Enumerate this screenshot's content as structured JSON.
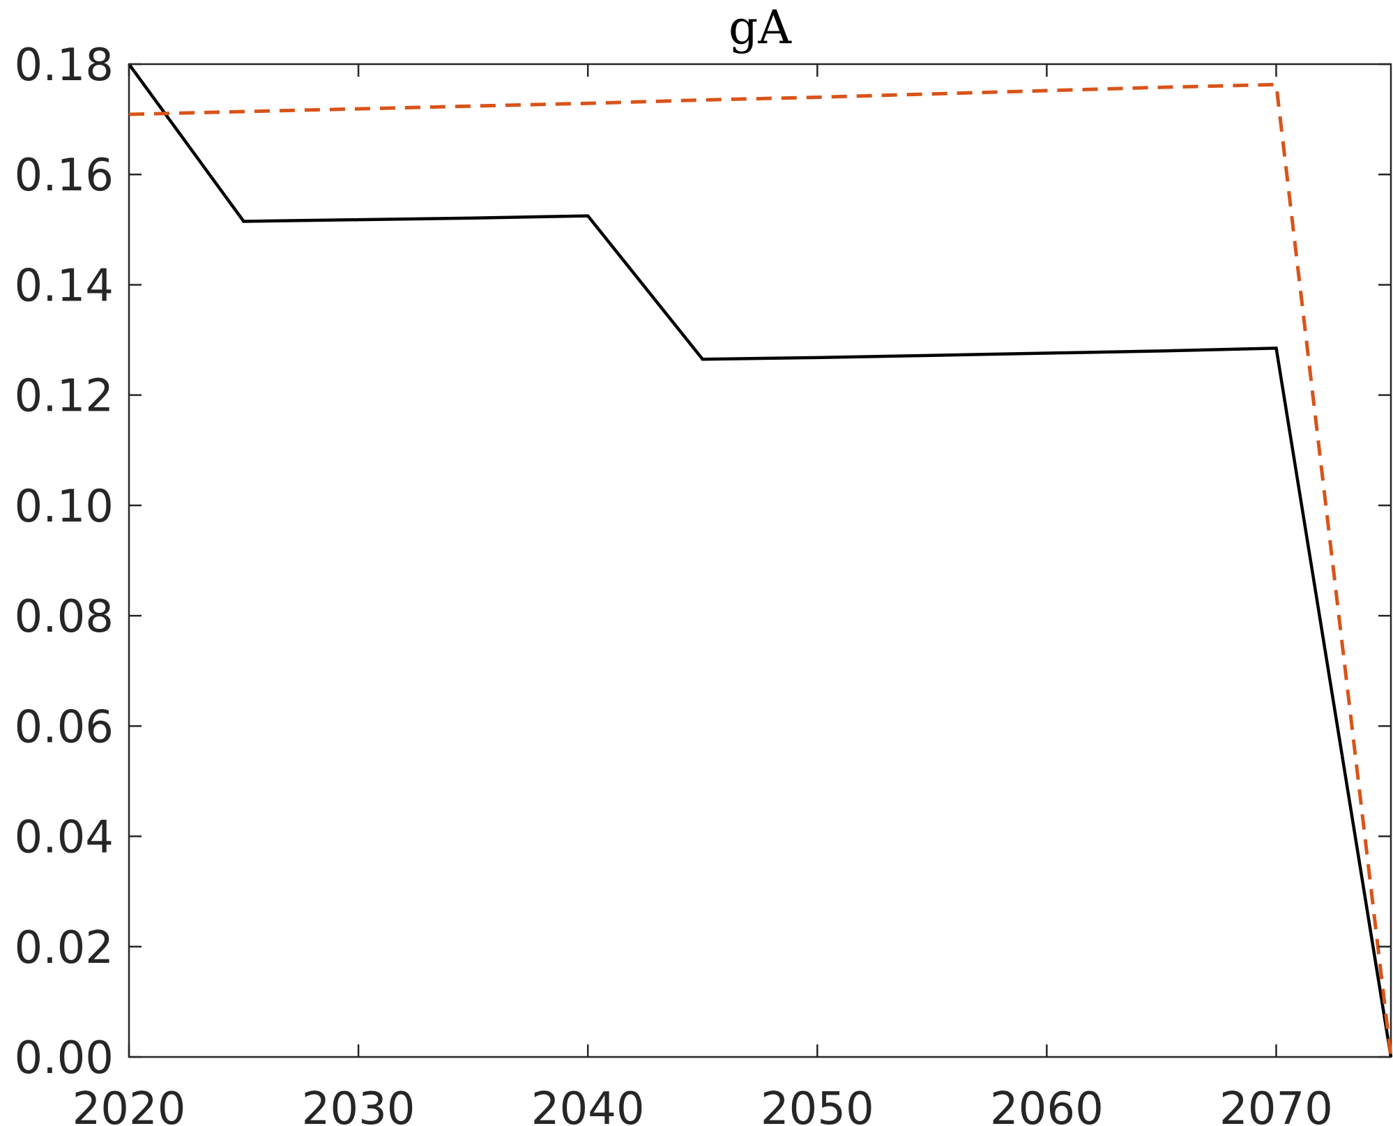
{
  "chart_data": {
    "type": "line",
    "title": "gA",
    "xlabel": "",
    "ylabel": "",
    "xlim": [
      2020,
      2075
    ],
    "ylim": [
      0,
      0.18
    ],
    "x_ticks": [
      2020,
      2030,
      2040,
      2050,
      2060,
      2070
    ],
    "x_tick_labels": [
      "2020",
      "2030",
      "2040",
      "2050",
      "2060",
      "2070"
    ],
    "y_ticks": [
      0,
      0.02,
      0.04,
      0.06,
      0.08,
      0.1,
      0.12,
      0.14,
      0.16,
      0.18
    ],
    "y_tick_labels": [
      "0.00",
      "0.02",
      "0.04",
      "0.06",
      "0.08",
      "0.10",
      "0.12",
      "0.14",
      "0.16",
      "0.18"
    ],
    "grid": false,
    "series": [
      {
        "color": "#000000",
        "line_style": "solid",
        "x": [
          2020,
          2025,
          2030,
          2035,
          2040,
          2045,
          2050,
          2055,
          2060,
          2065,
          2070,
          2075
        ],
        "y": [
          0.18,
          0.1515,
          0.1518,
          0.1521,
          0.1525,
          0.1265,
          0.1268,
          0.1272,
          0.1276,
          0.128,
          0.1285,
          0.0
        ]
      },
      {
        "color": "#D95319",
        "line_style": "dashed",
        "x": [
          2020,
          2025,
          2030,
          2035,
          2040,
          2045,
          2050,
          2055,
          2060,
          2065,
          2070,
          2075
        ],
        "y": [
          0.1709,
          0.1714,
          0.1719,
          0.1724,
          0.1729,
          0.1735,
          0.174,
          0.1746,
          0.1752,
          0.1758,
          0.1763,
          0.0
        ]
      }
    ]
  }
}
